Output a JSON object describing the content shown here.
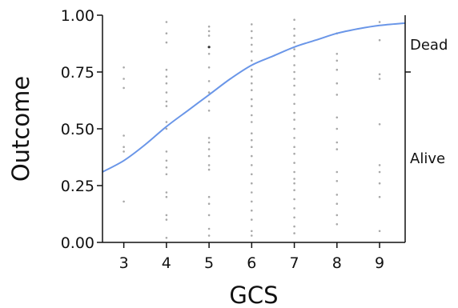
{
  "chart_data": {
    "type": "scatter",
    "xlabel": "GCS",
    "ylabel": "Outcome",
    "xlim": [
      2.5,
      9.6
    ],
    "ylim": [
      0,
      1
    ],
    "x_ticks": [
      "3",
      "4",
      "5",
      "6",
      "7",
      "8",
      "9"
    ],
    "y_ticks": [
      "0.00",
      "0.25",
      "0.50",
      "0.75",
      "1.00"
    ],
    "right_axis_labels": [
      {
        "label": "Dead",
        "value": 0.87
      },
      {
        "label": "Alive",
        "value": 0.37
      }
    ],
    "right_axis_tick": 0.75,
    "grid": false,
    "curve": {
      "color": "#6a96e8",
      "points": [
        [
          2.5,
          0.31
        ],
        [
          3.0,
          0.36
        ],
        [
          3.5,
          0.43
        ],
        [
          4.0,
          0.51
        ],
        [
          4.5,
          0.58
        ],
        [
          5.0,
          0.65
        ],
        [
          5.5,
          0.72
        ],
        [
          6.0,
          0.78
        ],
        [
          6.5,
          0.82
        ],
        [
          7.0,
          0.86
        ],
        [
          7.5,
          0.89
        ],
        [
          8.0,
          0.92
        ],
        [
          8.5,
          0.94
        ],
        [
          9.0,
          0.955
        ],
        [
          9.6,
          0.965
        ]
      ]
    },
    "points_color": "#a8a8a8",
    "highlight_color": "#333333",
    "points": [
      [
        3,
        0.18
      ],
      [
        3,
        0.4
      ],
      [
        3,
        0.42
      ],
      [
        3,
        0.47
      ],
      [
        3,
        0.68
      ],
      [
        3,
        0.72
      ],
      [
        3,
        0.77
      ],
      [
        4,
        0.02
      ],
      [
        4,
        0.1
      ],
      [
        4,
        0.12
      ],
      [
        4,
        0.2
      ],
      [
        4,
        0.22
      ],
      [
        4,
        0.3
      ],
      [
        4,
        0.33
      ],
      [
        4,
        0.36
      ],
      [
        4,
        0.4
      ],
      [
        4,
        0.5
      ],
      [
        4,
        0.53
      ],
      [
        4,
        0.6
      ],
      [
        4,
        0.62
      ],
      [
        4,
        0.66
      ],
      [
        4,
        0.7
      ],
      [
        4,
        0.73
      ],
      [
        4,
        0.76
      ],
      [
        4,
        0.88
      ],
      [
        4,
        0.92
      ],
      [
        4,
        0.97
      ],
      [
        5,
        0.03
      ],
      [
        5,
        0.06
      ],
      [
        5,
        0.12
      ],
      [
        5,
        0.17
      ],
      [
        5,
        0.2
      ],
      [
        5,
        0.32
      ],
      [
        5,
        0.34
      ],
      [
        5,
        0.38
      ],
      [
        5,
        0.41
      ],
      [
        5,
        0.44
      ],
      [
        5,
        0.46
      ],
      [
        5,
        0.58
      ],
      [
        5,
        0.62
      ],
      [
        5,
        0.66
      ],
      [
        5,
        0.71
      ],
      [
        5,
        0.77
      ],
      [
        5,
        0.83
      ],
      [
        5,
        0.91
      ],
      [
        5,
        0.93
      ],
      [
        5,
        0.95
      ],
      [
        6,
        0.03
      ],
      [
        6,
        0.05
      ],
      [
        6,
        0.1
      ],
      [
        6,
        0.14
      ],
      [
        6,
        0.18
      ],
      [
        6,
        0.22
      ],
      [
        6,
        0.26
      ],
      [
        6,
        0.3
      ],
      [
        6,
        0.34
      ],
      [
        6,
        0.38
      ],
      [
        6,
        0.42
      ],
      [
        6,
        0.45
      ],
      [
        6,
        0.48
      ],
      [
        6,
        0.53
      ],
      [
        6,
        0.56
      ],
      [
        6,
        0.6
      ],
      [
        6,
        0.63
      ],
      [
        6,
        0.67
      ],
      [
        6,
        0.7
      ],
      [
        6,
        0.73
      ],
      [
        6,
        0.76
      ],
      [
        6,
        0.8
      ],
      [
        6,
        0.84
      ],
      [
        6,
        0.87
      ],
      [
        6,
        0.9
      ],
      [
        6,
        0.93
      ],
      [
        6,
        0.96
      ],
      [
        7,
        0.04
      ],
      [
        7,
        0.07
      ],
      [
        7,
        0.11
      ],
      [
        7,
        0.15
      ],
      [
        7,
        0.19
      ],
      [
        7,
        0.23
      ],
      [
        7,
        0.26
      ],
      [
        7,
        0.28
      ],
      [
        7,
        0.31
      ],
      [
        7,
        0.35
      ],
      [
        7,
        0.39
      ],
      [
        7,
        0.42
      ],
      [
        7,
        0.46
      ],
      [
        7,
        0.5
      ],
      [
        7,
        0.54
      ],
      [
        7,
        0.57
      ],
      [
        7,
        0.61
      ],
      [
        7,
        0.65
      ],
      [
        7,
        0.69
      ],
      [
        7,
        0.72
      ],
      [
        7,
        0.75
      ],
      [
        7,
        0.78
      ],
      [
        7,
        0.82
      ],
      [
        7,
        0.85
      ],
      [
        7,
        0.88
      ],
      [
        7,
        0.91
      ],
      [
        7,
        0.94
      ],
      [
        7,
        0.98
      ],
      [
        8,
        0.08
      ],
      [
        8,
        0.12
      ],
      [
        8,
        0.17
      ],
      [
        8,
        0.21
      ],
      [
        8,
        0.27
      ],
      [
        8,
        0.31
      ],
      [
        8,
        0.41
      ],
      [
        8,
        0.44
      ],
      [
        8,
        0.5
      ],
      [
        8,
        0.55
      ],
      [
        8,
        0.65
      ],
      [
        8,
        0.7
      ],
      [
        8,
        0.76
      ],
      [
        8,
        0.8
      ],
      [
        8,
        0.83
      ],
      [
        8,
        0.92
      ],
      [
        9,
        0.05
      ],
      [
        9,
        0.2
      ],
      [
        9,
        0.26
      ],
      [
        9,
        0.31
      ],
      [
        9,
        0.34
      ],
      [
        9,
        0.52
      ],
      [
        9,
        0.72
      ],
      [
        9,
        0.74
      ],
      [
        9,
        0.89
      ],
      [
        9,
        0.97
      ]
    ],
    "highlight_points": [
      [
        5,
        0.86
      ]
    ]
  }
}
